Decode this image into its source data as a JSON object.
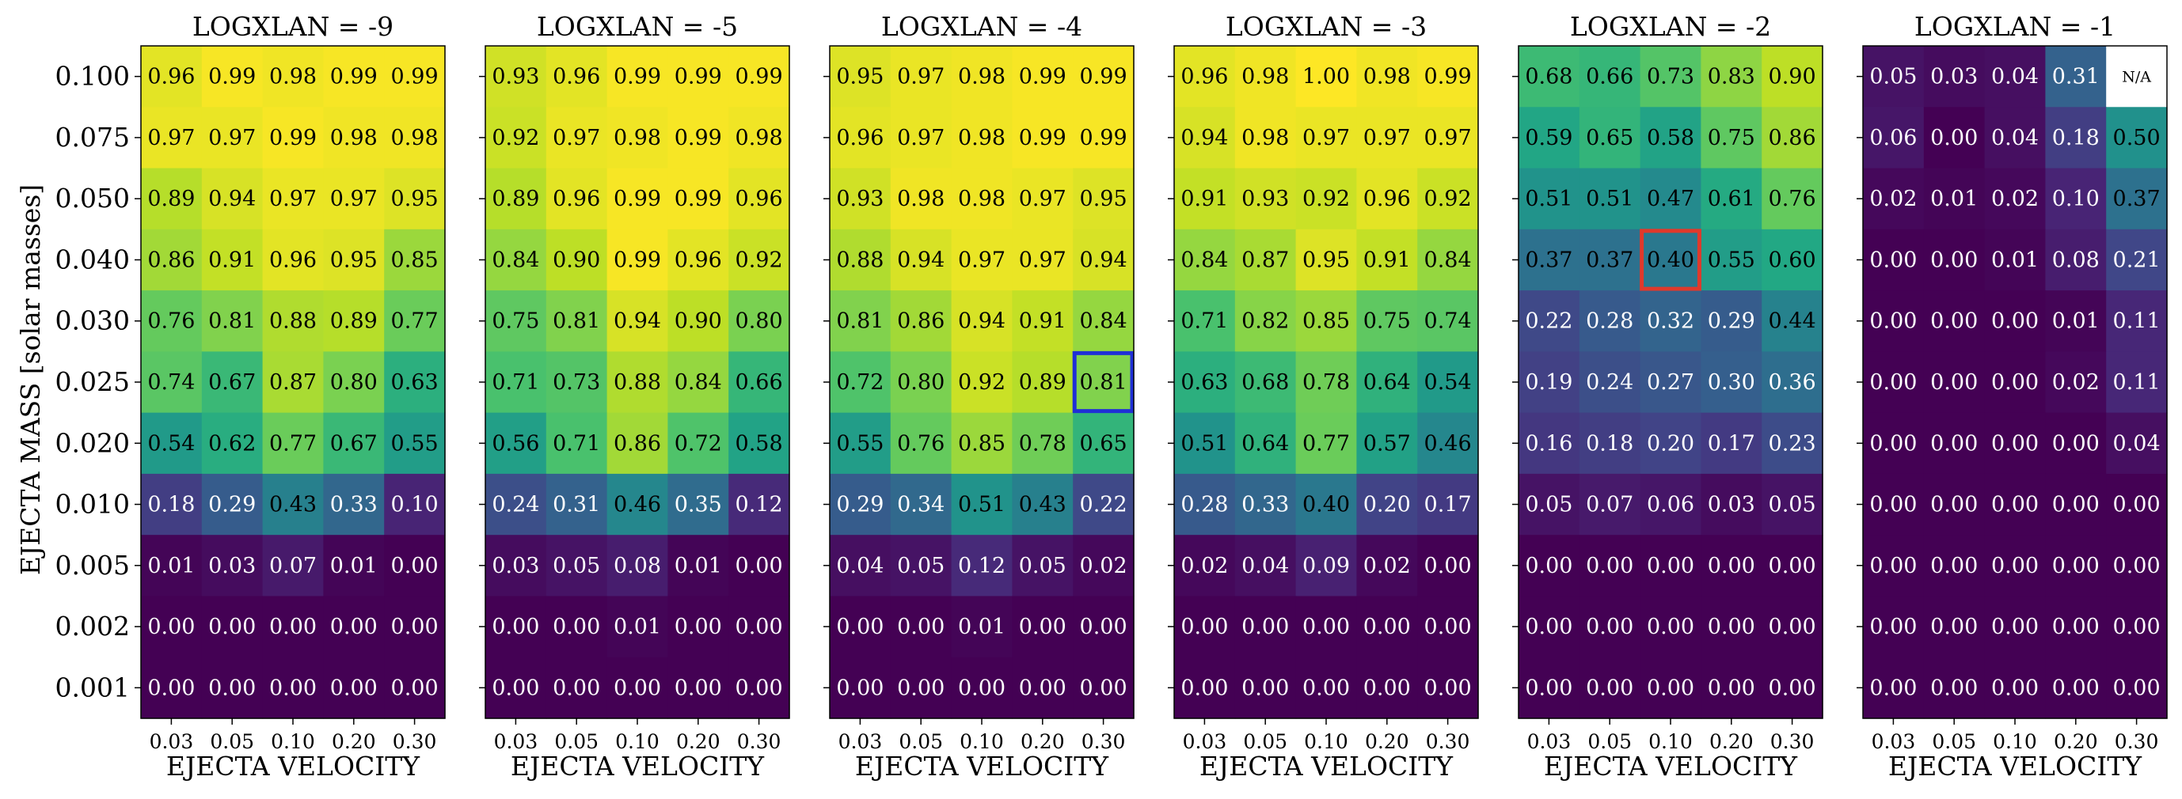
{
  "chart_data": {
    "type": "heatmap",
    "colormap": "viridis",
    "value_range": [
      0,
      1
    ],
    "ylabel": "EJECTA MASS [solar masses]",
    "xlabel": "EJECTA VELOCITY",
    "x_categories": [
      "0.03",
      "0.05",
      "0.10",
      "0.20",
      "0.30"
    ],
    "y_categories": [
      "0.100",
      "0.075",
      "0.050",
      "0.040",
      "0.030",
      "0.025",
      "0.020",
      "0.010",
      "0.005",
      "0.002",
      "0.001"
    ],
    "panels": [
      {
        "title": "LOGXLAN = -9",
        "values": [
          [
            0.96,
            0.99,
            0.98,
            0.99,
            0.99
          ],
          [
            0.97,
            0.97,
            0.99,
            0.98,
            0.98
          ],
          [
            0.89,
            0.94,
            0.97,
            0.97,
            0.95
          ],
          [
            0.86,
            0.91,
            0.96,
            0.95,
            0.85
          ],
          [
            0.76,
            0.81,
            0.88,
            0.89,
            0.77
          ],
          [
            0.74,
            0.67,
            0.87,
            0.8,
            0.63
          ],
          [
            0.54,
            0.62,
            0.77,
            0.67,
            0.55
          ],
          [
            0.18,
            0.29,
            0.43,
            0.33,
            0.1
          ],
          [
            0.01,
            0.03,
            0.07,
            0.01,
            0.0
          ],
          [
            0.0,
            0.0,
            0.0,
            0.0,
            0.0
          ],
          [
            0.0,
            0.0,
            0.0,
            0.0,
            0.0
          ]
        ]
      },
      {
        "title": "LOGXLAN = -5",
        "values": [
          [
            0.93,
            0.96,
            0.99,
            0.99,
            0.99
          ],
          [
            0.92,
            0.97,
            0.98,
            0.99,
            0.98
          ],
          [
            0.89,
            0.96,
            0.99,
            0.99,
            0.96
          ],
          [
            0.84,
            0.9,
            0.99,
            0.96,
            0.92
          ],
          [
            0.75,
            0.81,
            0.94,
            0.9,
            0.8
          ],
          [
            0.71,
            0.73,
            0.88,
            0.84,
            0.66
          ],
          [
            0.56,
            0.71,
            0.86,
            0.72,
            0.58
          ],
          [
            0.24,
            0.31,
            0.46,
            0.35,
            0.12
          ],
          [
            0.03,
            0.05,
            0.08,
            0.01,
            0.0
          ],
          [
            0.0,
            0.0,
            0.01,
            0.0,
            0.0
          ],
          [
            0.0,
            0.0,
            0.0,
            0.0,
            0.0
          ]
        ]
      },
      {
        "title": "LOGXLAN = -4",
        "values": [
          [
            0.95,
            0.97,
            0.98,
            0.99,
            0.99
          ],
          [
            0.96,
            0.97,
            0.98,
            0.99,
            0.99
          ],
          [
            0.93,
            0.98,
            0.98,
            0.97,
            0.95
          ],
          [
            0.88,
            0.94,
            0.97,
            0.97,
            0.94
          ],
          [
            0.81,
            0.86,
            0.94,
            0.91,
            0.84
          ],
          [
            0.72,
            0.8,
            0.92,
            0.89,
            0.81
          ],
          [
            0.55,
            0.76,
            0.85,
            0.78,
            0.65
          ],
          [
            0.29,
            0.34,
            0.51,
            0.43,
            0.22
          ],
          [
            0.04,
            0.05,
            0.12,
            0.05,
            0.02
          ],
          [
            0.0,
            0.0,
            0.01,
            0.0,
            0.0
          ],
          [
            0.0,
            0.0,
            0.0,
            0.0,
            0.0
          ]
        ],
        "highlight": {
          "row": 5,
          "col": 4,
          "color": "#1f2fd6"
        }
      },
      {
        "title": "LOGXLAN = -3",
        "values": [
          [
            0.96,
            0.98,
            1.0,
            0.98,
            0.99
          ],
          [
            0.94,
            0.98,
            0.97,
            0.97,
            0.97
          ],
          [
            0.91,
            0.93,
            0.92,
            0.96,
            0.92
          ],
          [
            0.84,
            0.87,
            0.95,
            0.91,
            0.84
          ],
          [
            0.71,
            0.82,
            0.85,
            0.75,
            0.74
          ],
          [
            0.63,
            0.68,
            0.78,
            0.64,
            0.54
          ],
          [
            0.51,
            0.64,
            0.77,
            0.57,
            0.46
          ],
          [
            0.28,
            0.33,
            0.4,
            0.2,
            0.17
          ],
          [
            0.02,
            0.04,
            0.09,
            0.02,
            0.0
          ],
          [
            0.0,
            0.0,
            0.0,
            0.0,
            0.0
          ],
          [
            0.0,
            0.0,
            0.0,
            0.0,
            0.0
          ]
        ]
      },
      {
        "title": "LOGXLAN = -2",
        "values": [
          [
            0.68,
            0.66,
            0.73,
            0.83,
            0.9
          ],
          [
            0.59,
            0.65,
            0.58,
            0.75,
            0.86
          ],
          [
            0.51,
            0.51,
            0.47,
            0.61,
            0.76
          ],
          [
            0.37,
            0.37,
            0.4,
            0.55,
            0.6
          ],
          [
            0.22,
            0.28,
            0.32,
            0.29,
            0.44
          ],
          [
            0.19,
            0.24,
            0.27,
            0.3,
            0.36
          ],
          [
            0.16,
            0.18,
            0.2,
            0.17,
            0.23
          ],
          [
            0.05,
            0.07,
            0.06,
            0.03,
            0.05
          ],
          [
            0.0,
            0.0,
            0.0,
            0.0,
            0.0
          ],
          [
            0.0,
            0.0,
            0.0,
            0.0,
            0.0
          ],
          [
            0.0,
            0.0,
            0.0,
            0.0,
            0.0
          ]
        ],
        "highlight": {
          "row": 3,
          "col": 2,
          "color": "#e0392b"
        }
      },
      {
        "title": "LOGXLAN = -1",
        "values": [
          [
            0.05,
            0.03,
            0.04,
            0.31,
            null
          ],
          [
            0.06,
            0.0,
            0.04,
            0.18,
            0.5
          ],
          [
            0.02,
            0.01,
            0.02,
            0.1,
            0.37
          ],
          [
            0.0,
            0.0,
            0.01,
            0.08,
            0.21
          ],
          [
            0.0,
            0.0,
            0.0,
            0.01,
            0.11
          ],
          [
            0.0,
            0.0,
            0.0,
            0.02,
            0.11
          ],
          [
            0.0,
            0.0,
            0.0,
            0.0,
            0.04
          ],
          [
            0.0,
            0.0,
            0.0,
            0.0,
            0.0
          ],
          [
            0.0,
            0.0,
            0.0,
            0.0,
            0.0
          ],
          [
            0.0,
            0.0,
            0.0,
            0.0,
            0.0
          ],
          [
            0.0,
            0.0,
            0.0,
            0.0,
            0.0
          ]
        ],
        "missing_label": "N/A"
      }
    ]
  }
}
